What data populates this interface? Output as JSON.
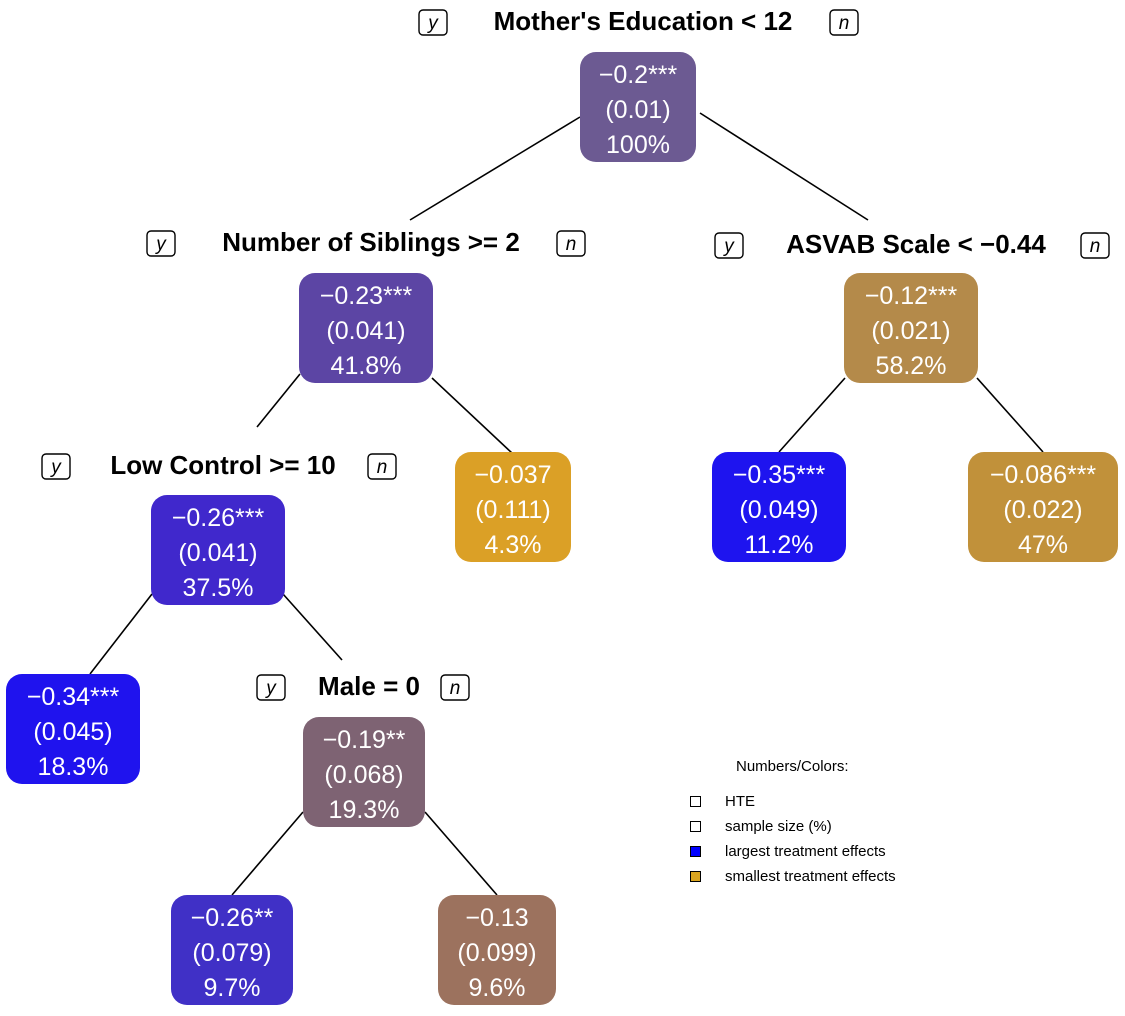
{
  "diagram": {
    "splits": [
      {
        "id": "s_root",
        "label": "Mother's Education < 12",
        "yes": "y",
        "no": "n"
      },
      {
        "id": "s_sib",
        "label": "Number of Siblings >= 2",
        "yes": "y",
        "no": "n"
      },
      {
        "id": "s_asvab",
        "label": "ASVAB Scale < −0.44",
        "yes": "y",
        "no": "n"
      },
      {
        "id": "s_low",
        "label": "Low Control >= 10",
        "yes": "y",
        "no": "n"
      },
      {
        "id": "s_male",
        "label": "Male = 0",
        "yes": "y",
        "no": "n"
      }
    ],
    "nodes": [
      {
        "id": "n_root",
        "hte": "−0.2***",
        "se": "(0.01)",
        "size": "100%",
        "color": "#6c5a92"
      },
      {
        "id": "n_sib",
        "hte": "−0.23***",
        "se": "(0.041)",
        "size": "41.8%",
        "color": "#5c45a4"
      },
      {
        "id": "n_asvab",
        "hte": "−0.12***",
        "se": "(0.021)",
        "size": "58.2%",
        "color": "#b48a4a"
      },
      {
        "id": "n_low",
        "hte": "−0.26***",
        "se": "(0.041)",
        "size": "37.5%",
        "color": "#4028cc"
      },
      {
        "id": "n_sib_no",
        "hte": "−0.037",
        "se": "(0.111)",
        "size": "4.3%",
        "color": "#dba026"
      },
      {
        "id": "n_asvab_yes",
        "hte": "−0.35***",
        "se": "(0.049)",
        "size": "11.2%",
        "color": "#1e14ef"
      },
      {
        "id": "n_asvab_no",
        "hte": "−0.086***",
        "se": "(0.022)",
        "size": "47%",
        "color": "#c1913a"
      },
      {
        "id": "n_low_yes",
        "hte": "−0.34***",
        "se": "(0.045)",
        "size": "18.3%",
        "color": "#1f13ee"
      },
      {
        "id": "n_male",
        "hte": "−0.19**",
        "se": "(0.068)",
        "size": "19.3%",
        "color": "#7e6373"
      },
      {
        "id": "n_male_yes",
        "hte": "−0.26**",
        "se": "(0.079)",
        "size": "9.7%",
        "color": "#4030c6"
      },
      {
        "id": "n_male_no",
        "hte": "−0.13",
        "se": "(0.099)",
        "size": "9.6%",
        "color": "#9c725e"
      }
    ]
  },
  "legend": {
    "title": "Numbers/Colors:",
    "items": [
      {
        "label": "HTE",
        "color": "#ffffff"
      },
      {
        "label": "sample size (%)",
        "color": "#ffffff"
      },
      {
        "label": "largest treatment effects",
        "color": "#0000ff"
      },
      {
        "label": "smallest treatment effects",
        "color": "#daa520"
      }
    ]
  }
}
